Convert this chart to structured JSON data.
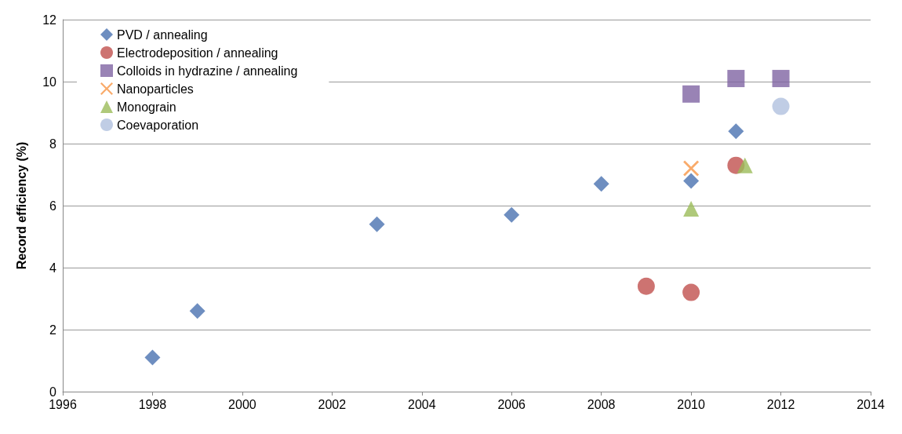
{
  "chart_data": {
    "type": "scatter",
    "ylabel": "Record efficiency (%)",
    "xlim": [
      1996,
      2014
    ],
    "xticks": [
      1996,
      1998,
      2000,
      2002,
      2004,
      2006,
      2008,
      2010,
      2012,
      2014
    ],
    "ylim": [
      0,
      12
    ],
    "yticks": [
      0,
      2,
      4,
      6,
      8,
      10,
      12
    ],
    "grid": "y",
    "legend": "top left",
    "series": [
      {
        "name": "PVD / annealing",
        "color": "#4a72b0",
        "marker": "diamond",
        "x": [
          1998,
          1999,
          2003,
          2006,
          2008,
          2010,
          2011
        ],
        "values": [
          1.1,
          2.6,
          5.4,
          5.7,
          6.7,
          6.8,
          8.4
        ]
      },
      {
        "name": "Electrodeposition / annealing",
        "color": "#c0504d",
        "marker": "circle",
        "x": [
          2009,
          2010,
          2011
        ],
        "values": [
          3.4,
          3.2,
          7.3
        ]
      },
      {
        "name": "Colloids in hydrazine / annealing",
        "color": "#8064a2",
        "marker": "square",
        "x": [
          2010,
          2011,
          2012
        ],
        "values": [
          9.6,
          10.1,
          10.1
        ]
      },
      {
        "name": "Nanoparticles",
        "color": "#f79646",
        "marker": "cross",
        "x": [
          2010
        ],
        "values": [
          7.2
        ]
      },
      {
        "name": "Monograin",
        "color": "#9bbb59",
        "marker": "triangle",
        "x": [
          2010,
          2011.2
        ],
        "values": [
          5.9,
          7.3
        ]
      },
      {
        "name": "Coevaporation",
        "color": "#b0c0de",
        "marker": "circle",
        "x": [
          2012
        ],
        "values": [
          9.2
        ]
      }
    ]
  }
}
